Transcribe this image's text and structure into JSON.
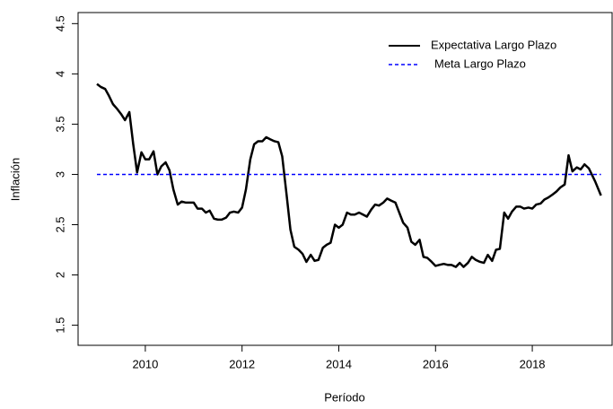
{
  "chart_data": {
    "type": "line",
    "x_label": "Período",
    "y_label": "Inflación",
    "xlim": [
      2008.61,
      2019.65
    ],
    "ylim": [
      1.3,
      4.61
    ],
    "xticks": [
      2010,
      2012,
      2014,
      2016,
      2018
    ],
    "yticks": [
      1.5,
      2.0,
      2.5,
      3.0,
      3.5,
      4.0,
      4.5
    ],
    "legend": "top-right",
    "series": [
      {
        "name": "Expectativa Largo Plazo",
        "color": "#000000",
        "linestyle": "solid",
        "x": [
          2009.0,
          2009.08,
          2009.17,
          2009.25,
          2009.33,
          2009.42,
          2009.5,
          2009.58,
          2009.67,
          2009.75,
          2009.83,
          2009.92,
          2010.0,
          2010.08,
          2010.17,
          2010.25,
          2010.33,
          2010.42,
          2010.5,
          2010.58,
          2010.67,
          2010.75,
          2010.83,
          2010.92,
          2011.0,
          2011.08,
          2011.17,
          2011.25,
          2011.33,
          2011.42,
          2011.5,
          2011.58,
          2011.67,
          2011.75,
          2011.83,
          2011.92,
          2012.0,
          2012.08,
          2012.17,
          2012.25,
          2012.33,
          2012.42,
          2012.5,
          2012.58,
          2012.67,
          2012.75,
          2012.83,
          2012.92,
          2013.0,
          2013.08,
          2013.17,
          2013.25,
          2013.33,
          2013.42,
          2013.5,
          2013.58,
          2013.67,
          2013.75,
          2013.83,
          2013.92,
          2014.0,
          2014.08,
          2014.17,
          2014.25,
          2014.33,
          2014.42,
          2014.5,
          2014.58,
          2014.67,
          2014.75,
          2014.83,
          2014.92,
          2015.0,
          2015.08,
          2015.17,
          2015.25,
          2015.33,
          2015.42,
          2015.5,
          2015.58,
          2015.67,
          2015.75,
          2015.83,
          2015.92,
          2016.0,
          2016.08,
          2016.17,
          2016.25,
          2016.33,
          2016.42,
          2016.5,
          2016.58,
          2016.67,
          2016.75,
          2016.83,
          2016.92,
          2017.0,
          2017.08,
          2017.17,
          2017.25,
          2017.33,
          2017.42,
          2017.5,
          2017.58,
          2017.67,
          2017.75,
          2017.83,
          2017.92,
          2018.0,
          2018.08,
          2018.17,
          2018.25,
          2018.33,
          2018.42,
          2018.5,
          2018.58,
          2018.67,
          2018.75,
          2018.83,
          2018.92,
          2019.0,
          2019.08,
          2019.17,
          2019.3,
          2019.42
        ],
        "values": [
          3.9,
          3.87,
          3.85,
          3.78,
          3.7,
          3.65,
          3.6,
          3.54,
          3.62,
          3.3,
          3.02,
          3.22,
          3.15,
          3.15,
          3.23,
          3.0,
          3.08,
          3.12,
          3.04,
          2.85,
          2.7,
          2.73,
          2.72,
          2.72,
          2.72,
          2.66,
          2.66,
          2.62,
          2.64,
          2.56,
          2.55,
          2.55,
          2.57,
          2.62,
          2.63,
          2.62,
          2.67,
          2.85,
          3.15,
          3.3,
          3.33,
          3.33,
          3.37,
          3.35,
          3.33,
          3.32,
          3.18,
          2.8,
          2.45,
          2.28,
          2.25,
          2.21,
          2.13,
          2.2,
          2.14,
          2.15,
          2.27,
          2.3,
          2.32,
          2.5,
          2.47,
          2.5,
          2.62,
          2.6,
          2.6,
          2.62,
          2.6,
          2.58,
          2.65,
          2.7,
          2.69,
          2.72,
          2.76,
          2.74,
          2.72,
          2.62,
          2.52,
          2.47,
          2.33,
          2.3,
          2.35,
          2.18,
          2.17,
          2.13,
          2.09,
          2.1,
          2.11,
          2.1,
          2.1,
          2.08,
          2.12,
          2.08,
          2.12,
          2.18,
          2.15,
          2.13,
          2.12,
          2.2,
          2.14,
          2.25,
          2.26,
          2.62,
          2.56,
          2.63,
          2.68,
          2.68,
          2.66,
          2.67,
          2.66,
          2.7,
          2.71,
          2.75,
          2.77,
          2.8,
          2.83,
          2.87,
          2.9,
          3.19,
          3.03,
          3.07,
          3.05,
          3.1,
          3.06,
          2.93,
          2.79
        ]
      },
      {
        "name": "Meta Largo Plazo",
        "color": "#0000ff",
        "linestyle": "dashed",
        "x": [
          2009.0,
          2019.42
        ],
        "values": [
          3.0,
          3.0
        ]
      }
    ]
  }
}
